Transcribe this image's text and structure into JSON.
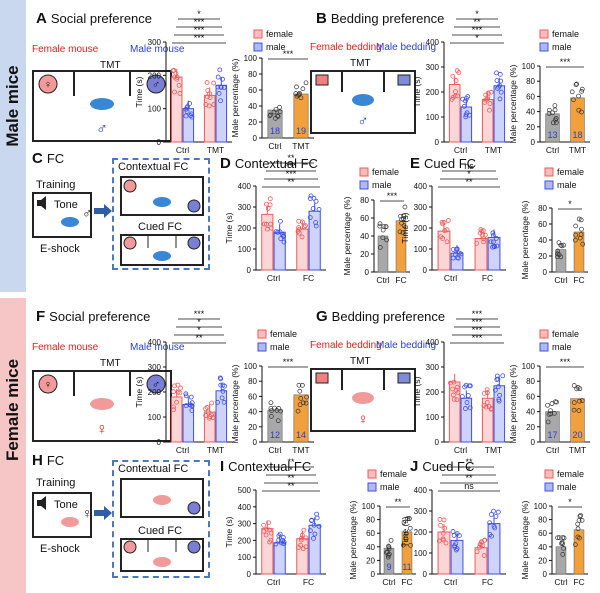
{
  "rows": {
    "male": "Male mice",
    "female": "Female mice"
  },
  "panels": {
    "A": {
      "letter": "A",
      "title": "Social preference"
    },
    "B": {
      "letter": "B",
      "title": "Bedding preference"
    },
    "C": {
      "letter": "C",
      "title": "FC"
    },
    "D": {
      "letter": "D",
      "title": "Contextual FC"
    },
    "E": {
      "letter": "E",
      "title": "Cued FC"
    },
    "F": {
      "letter": "F",
      "title": "Social preference"
    },
    "G": {
      "letter": "G",
      "title": "Bedding preference"
    },
    "H": {
      "letter": "H",
      "title": "FC"
    },
    "I": {
      "letter": "I",
      "title": "Contextual FC"
    },
    "J": {
      "letter": "J",
      "title": "Cued FC"
    }
  },
  "schematic": {
    "female_mouse": "Female mouse",
    "male_mouse": "Male mouse",
    "female_bedding": "Female bedding",
    "male_bedding": "Male bedding",
    "tmt": "TMT",
    "training": "Training",
    "tone": "Tone",
    "eshock": "E-shock",
    "contextual_fc": "Contextual FC",
    "cued_fc": "Cued FC",
    "female_symbol": "♀",
    "male_symbol": "♂"
  },
  "colors": {
    "female": "#f05a5a",
    "male": "#3c50e6",
    "ctrl_bar": "#a8a8a8",
    "exp_bar": "#f2a03c"
  },
  "chart_data": [
    {
      "id": "A-time",
      "type": "bar",
      "ylabel": "Time (s)",
      "ylim": [
        0,
        300
      ],
      "yticks": [
        0,
        100,
        200,
        300
      ],
      "categories": [
        "Ctrl",
        "TMT"
      ],
      "series": [
        {
          "name": "female",
          "values": [
            195,
            140
          ]
        },
        {
          "name": "male",
          "values": [
            100,
            170
          ]
        }
      ],
      "annotations": [
        "***",
        "***",
        "***",
        "*"
      ]
    },
    {
      "id": "A-pct",
      "type": "bar",
      "ylabel": "Male percentage (%)",
      "ylim": [
        0,
        100
      ],
      "yticks": [
        0,
        20,
        40,
        60,
        80,
        100
      ],
      "categories": [
        "Ctrl",
        "TMT"
      ],
      "values": [
        35,
        55
      ],
      "n": [
        "18",
        "19"
      ],
      "annotations": [
        "***"
      ]
    },
    {
      "id": "B-time",
      "type": "bar",
      "ylabel": "Time (s)",
      "ylim": [
        0,
        400
      ],
      "yticks": [
        0,
        100,
        200,
        300,
        400
      ],
      "categories": [
        "Ctrl",
        "TMT"
      ],
      "series": [
        {
          "name": "female",
          "values": [
            230,
            170
          ]
        },
        {
          "name": "male",
          "values": [
            140,
            225
          ]
        }
      ],
      "annotations": [
        "*",
        "***",
        "**",
        "*"
      ]
    },
    {
      "id": "B-pct",
      "type": "bar",
      "ylabel": "Male percentage (%)",
      "ylim": [
        0,
        100
      ],
      "yticks": [
        0,
        20,
        40,
        60,
        80,
        100
      ],
      "categories": [
        "Ctrl",
        "TMT"
      ],
      "values": [
        37,
        58
      ],
      "n": [
        "13",
        "18"
      ],
      "annotations": [
        "***"
      ]
    },
    {
      "id": "D-time",
      "type": "bar",
      "ylabel": "Time (s)",
      "ylim": [
        0,
        400
      ],
      "yticks": [
        0,
        100,
        200,
        300,
        400
      ],
      "categories": [
        "Ctrl",
        "FC"
      ],
      "series": [
        {
          "name": "female",
          "values": [
            265,
            195
          ]
        },
        {
          "name": "male",
          "values": [
            180,
            280
          ]
        }
      ],
      "annotations": [
        "**",
        "***",
        "***",
        "**"
      ]
    },
    {
      "id": "D-pct",
      "type": "bar",
      "ylabel": "Male percentage (%)",
      "ylim": [
        0,
        80
      ],
      "yticks": [
        0,
        20,
        40,
        60,
        80
      ],
      "categories": [
        "Ctrl",
        "FC"
      ],
      "values": [
        40,
        57
      ],
      "annotations": [
        "***"
      ]
    },
    {
      "id": "E-time",
      "type": "bar",
      "ylabel": "Time (s)",
      "ylim": [
        0,
        400
      ],
      "yticks": [
        0,
        100,
        200,
        300,
        400
      ],
      "categories": [
        "Ctrl",
        "FC"
      ],
      "series": [
        {
          "name": "female",
          "values": [
            185,
            150
          ]
        },
        {
          "name": "male",
          "values": [
            80,
            155
          ]
        }
      ],
      "annotations": [
        "**",
        "*",
        "ns"
      ]
    },
    {
      "id": "E-pct",
      "type": "bar",
      "ylabel": "Male percentage (%)",
      "ylim": [
        0,
        80
      ],
      "yticks": [
        0,
        20,
        40,
        60,
        80
      ],
      "categories": [
        "Ctrl",
        "FC"
      ],
      "values": [
        28,
        50
      ],
      "annotations": [
        "*"
      ]
    },
    {
      "id": "F-time",
      "type": "bar",
      "ylabel": "Time (s)",
      "ylim": [
        0,
        400
      ],
      "yticks": [
        0,
        100,
        200,
        300,
        400
      ],
      "categories": [
        "Ctrl",
        "TMT"
      ],
      "series": [
        {
          "name": "female",
          "values": [
            180,
            120
          ]
        },
        {
          "name": "male",
          "values": [
            150,
            205
          ]
        }
      ],
      "annotations": [
        "**",
        "*",
        "*",
        "***"
      ]
    },
    {
      "id": "F-pct",
      "type": "bar",
      "ylabel": "Male percentage (%)",
      "ylim": [
        0,
        100
      ],
      "yticks": [
        0,
        20,
        40,
        60,
        80,
        100
      ],
      "categories": [
        "Ctrl",
        "TMT"
      ],
      "values": [
        42,
        62
      ],
      "n": [
        "12",
        "14"
      ],
      "annotations": [
        "***"
      ]
    },
    {
      "id": "G-time",
      "type": "bar",
      "ylabel": "Time (s)",
      "ylim": [
        0,
        400
      ],
      "yticks": [
        0,
        100,
        200,
        300,
        400
      ],
      "categories": [
        "Ctrl",
        "TMT"
      ],
      "series": [
        {
          "name": "female",
          "values": [
            240,
            175
          ]
        },
        {
          "name": "male",
          "values": [
            175,
            225
          ]
        }
      ],
      "annotations": [
        "***",
        "***",
        "***",
        "***"
      ]
    },
    {
      "id": "G-pct",
      "type": "bar",
      "ylabel": "Male percentage (%)",
      "ylim": [
        0,
        100
      ],
      "yticks": [
        0,
        20,
        40,
        60,
        80,
        100
      ],
      "categories": [
        "Ctrl",
        "TMT"
      ],
      "values": [
        40,
        57
      ],
      "n": [
        "17",
        "20"
      ],
      "annotations": [
        "***"
      ]
    },
    {
      "id": "I-time",
      "type": "bar",
      "ylabel": "Time (s)",
      "ylim": [
        0,
        500
      ],
      "yticks": [
        0,
        100,
        200,
        300,
        400,
        500
      ],
      "categories": [
        "Ctrl",
        "FC"
      ],
      "series": [
        {
          "name": "female",
          "values": [
            270,
            210
          ]
        },
        {
          "name": "male",
          "values": [
            185,
            290
          ]
        }
      ],
      "annotations": [
        "**",
        "**",
        "*",
        "**"
      ]
    },
    {
      "id": "I-pct",
      "type": "bar",
      "ylabel": "Male percentage (%)",
      "ylim": [
        0,
        100
      ],
      "yticks": [
        0,
        20,
        40,
        60,
        80,
        100
      ],
      "categories": [
        "Ctrl",
        "FC"
      ],
      "values": [
        38,
        62
      ],
      "n": [
        "9",
        "11"
      ],
      "annotations": [
        "**"
      ]
    },
    {
      "id": "J-time",
      "type": "bar",
      "ylabel": "Time (s)",
      "ylim": [
        0,
        400
      ],
      "yticks": [
        0,
        100,
        200,
        300,
        400
      ],
      "categories": [
        "Ctrl",
        "FC"
      ],
      "series": [
        {
          "name": "female",
          "values": [
            200,
            125
          ]
        },
        {
          "name": "male",
          "values": [
            160,
            240
          ]
        }
      ],
      "annotations": [
        "ns",
        "**",
        "*",
        "**"
      ]
    },
    {
      "id": "J-pct",
      "type": "bar",
      "ylabel": "Male percentage (%)",
      "ylim": [
        0,
        100
      ],
      "yticks": [
        0,
        20,
        40,
        60,
        80,
        100
      ],
      "categories": [
        "Ctrl",
        "FC"
      ],
      "values": [
        40,
        65
      ],
      "annotations": [
        "*"
      ]
    }
  ],
  "legend": [
    "female",
    "male"
  ]
}
